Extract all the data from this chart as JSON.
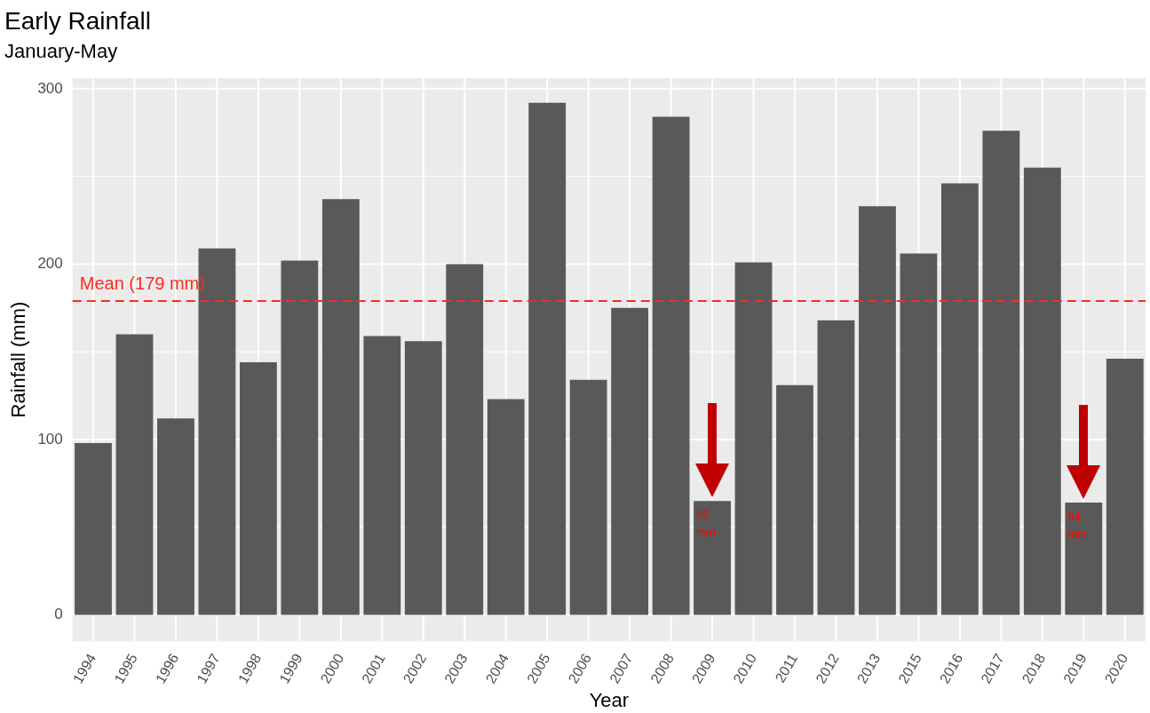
{
  "chart_data": {
    "type": "bar",
    "title": "Early Rainfall",
    "subtitle": "January-May",
    "xlabel": "Year",
    "ylabel": "Rainfall (mm)",
    "categories": [
      "1994",
      "1995",
      "1996",
      "1997",
      "1998",
      "1999",
      "2000",
      "2001",
      "2002",
      "2003",
      "2004",
      "2005",
      "2006",
      "2007",
      "2008",
      "2009",
      "2010",
      "2011",
      "2012",
      "2013",
      "2015",
      "2016",
      "2017",
      "2018",
      "2019",
      "2020"
    ],
    "values": [
      98,
      160,
      112,
      209,
      144,
      202,
      237,
      159,
      156,
      200,
      123,
      292,
      134,
      175,
      284,
      65,
      201,
      131,
      168,
      233,
      206,
      246,
      276,
      255,
      64,
      146
    ],
    "color": "#595959",
    "ylim": [
      -15,
      306
    ],
    "yticks": [
      0,
      100,
      200,
      300
    ],
    "grid": true,
    "ref_lines": [
      {
        "axis": "y",
        "value": 179,
        "label": "Mean (179 mm)",
        "color": "#ff2a1a",
        "line_style": "dashed"
      }
    ],
    "annotations": [
      {
        "text": "65 mm",
        "x": "2009",
        "y": 65
      },
      {
        "text": "64 mm",
        "x": "2019",
        "y": 64
      }
    ]
  }
}
